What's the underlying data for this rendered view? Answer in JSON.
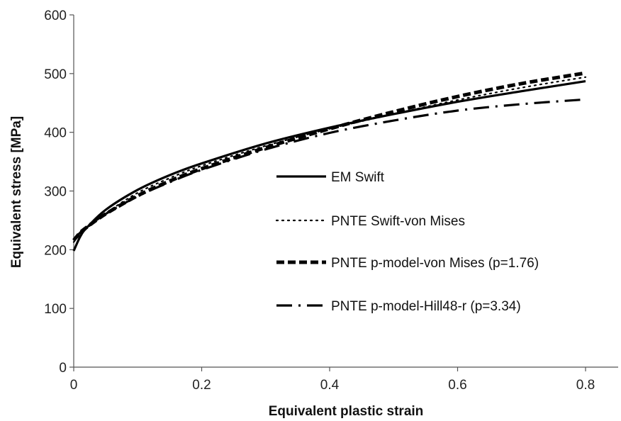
{
  "chart_data": {
    "type": "line",
    "title": "",
    "xlabel": "Equivalent plastic strain",
    "ylabel": "Equivalent stress [MPa]",
    "xlim": [
      0,
      0.8
    ],
    "ylim": [
      0,
      600
    ],
    "xticks": [
      "0",
      "0.2",
      "0.4",
      "0.6",
      "0.8"
    ],
    "yticks": [
      "0",
      "100",
      "200",
      "300",
      "400",
      "500",
      "600"
    ],
    "grid": false,
    "legend_position": "center-right",
    "series": [
      {
        "name": "EM Swift",
        "style": "solid",
        "color": "#000000",
        "x": [
          0,
          0.01,
          0.02,
          0.05,
          0.1,
          0.15,
          0.2,
          0.3,
          0.4,
          0.5,
          0.6,
          0.7,
          0.8
        ],
        "y": [
          198,
          222,
          237,
          268,
          302,
          327,
          347,
          381,
          408,
          431,
          452,
          470,
          487
        ]
      },
      {
        "name": "PNTE Swift-von Mises",
        "style": "dotted",
        "color": "#000000",
        "x": [
          0,
          0.01,
          0.02,
          0.05,
          0.1,
          0.15,
          0.2,
          0.3,
          0.4,
          0.5,
          0.6,
          0.7,
          0.8
        ],
        "y": [
          213,
          226,
          236,
          262,
          297,
          322,
          343,
          377,
          406,
          431,
          455,
          476,
          494
        ]
      },
      {
        "name": "PNTE p-model-von Mises (p=1.76)",
        "style": "dashed",
        "color": "#000000",
        "x": [
          0,
          0.01,
          0.02,
          0.05,
          0.1,
          0.15,
          0.2,
          0.3,
          0.4,
          0.5,
          0.6,
          0.7,
          0.8
        ],
        "y": [
          216,
          229,
          238,
          261,
          292,
          317,
          338,
          374,
          406,
          435,
          461,
          483,
          501
        ]
      },
      {
        "name": "PNTE p-model-Hill48-r (p=3.34)",
        "style": "dashdot",
        "color": "#000000",
        "x": [
          0,
          0.01,
          0.02,
          0.05,
          0.1,
          0.15,
          0.2,
          0.3,
          0.4,
          0.5,
          0.6,
          0.7,
          0.8
        ],
        "y": [
          216,
          229,
          238,
          261,
          291,
          315,
          336,
          371,
          399,
          420,
          437,
          448,
          456
        ]
      }
    ]
  }
}
